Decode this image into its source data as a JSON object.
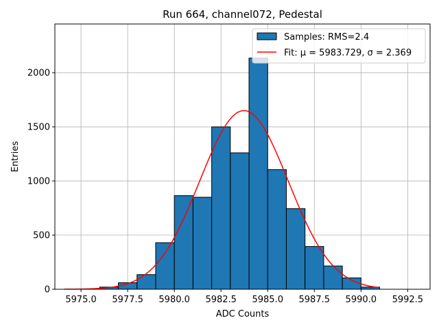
{
  "chart_data": {
    "type": "bar",
    "title": "Run 664, channel072, Pedestal",
    "xlabel": "ADC Counts",
    "ylabel": "Entries",
    "xlim": [
      5973.6,
      5993.7
    ],
    "ylim": [
      0,
      2450
    ],
    "xticks": [
      5975.0,
      5977.5,
      5980.0,
      5982.5,
      5985.0,
      5987.5,
      5990.0,
      5992.5
    ],
    "xtick_labels": [
      "5975.0",
      "5977.5",
      "5980.0",
      "5982.5",
      "5985.0",
      "5987.5",
      "5990.0",
      "5992.5"
    ],
    "yticks": [
      0,
      500,
      1000,
      1500,
      2000
    ],
    "ytick_labels": [
      "0",
      "500",
      "1000",
      "1500",
      "2000"
    ],
    "grid": true,
    "legend_position": "top-right",
    "histogram": {
      "name": "Samples: RMS=2.4",
      "color": "#1f77b4",
      "edge_color": "#000000",
      "bins": [
        {
          "start": 5974.1,
          "end": 5976.0,
          "value": 0
        },
        {
          "start": 5976.0,
          "end": 5977.0,
          "value": 20
        },
        {
          "start": 5977.0,
          "end": 5978.0,
          "value": 60
        },
        {
          "start": 5978.0,
          "end": 5979.0,
          "value": 135
        },
        {
          "start": 5979.0,
          "end": 5980.0,
          "value": 430
        },
        {
          "start": 5980.0,
          "end": 5981.0,
          "value": 865
        },
        {
          "start": 5981.0,
          "end": 5982.0,
          "value": 850
        },
        {
          "start": 5982.0,
          "end": 5983.0,
          "value": 1500
        },
        {
          "start": 5983.0,
          "end": 5984.0,
          "value": 1260
        },
        {
          "start": 5984.0,
          "end": 5985.0,
          "value": 2135
        },
        {
          "start": 5985.0,
          "end": 5986.0,
          "value": 1105
        },
        {
          "start": 5986.0,
          "end": 5987.0,
          "value": 745
        },
        {
          "start": 5987.0,
          "end": 5988.0,
          "value": 395
        },
        {
          "start": 5988.0,
          "end": 5989.0,
          "value": 215
        },
        {
          "start": 5989.0,
          "end": 5990.0,
          "value": 105
        },
        {
          "start": 5990.0,
          "end": 5991.0,
          "value": 20
        }
      ]
    },
    "fit": {
      "name": "Fit: μ = 5983.729, σ = 2.369",
      "mu": 5983.729,
      "sigma": 2.369,
      "amplitude": 1650,
      "x_range": [
        5974.1,
        5991.0
      ],
      "color": "#ff0000"
    }
  }
}
